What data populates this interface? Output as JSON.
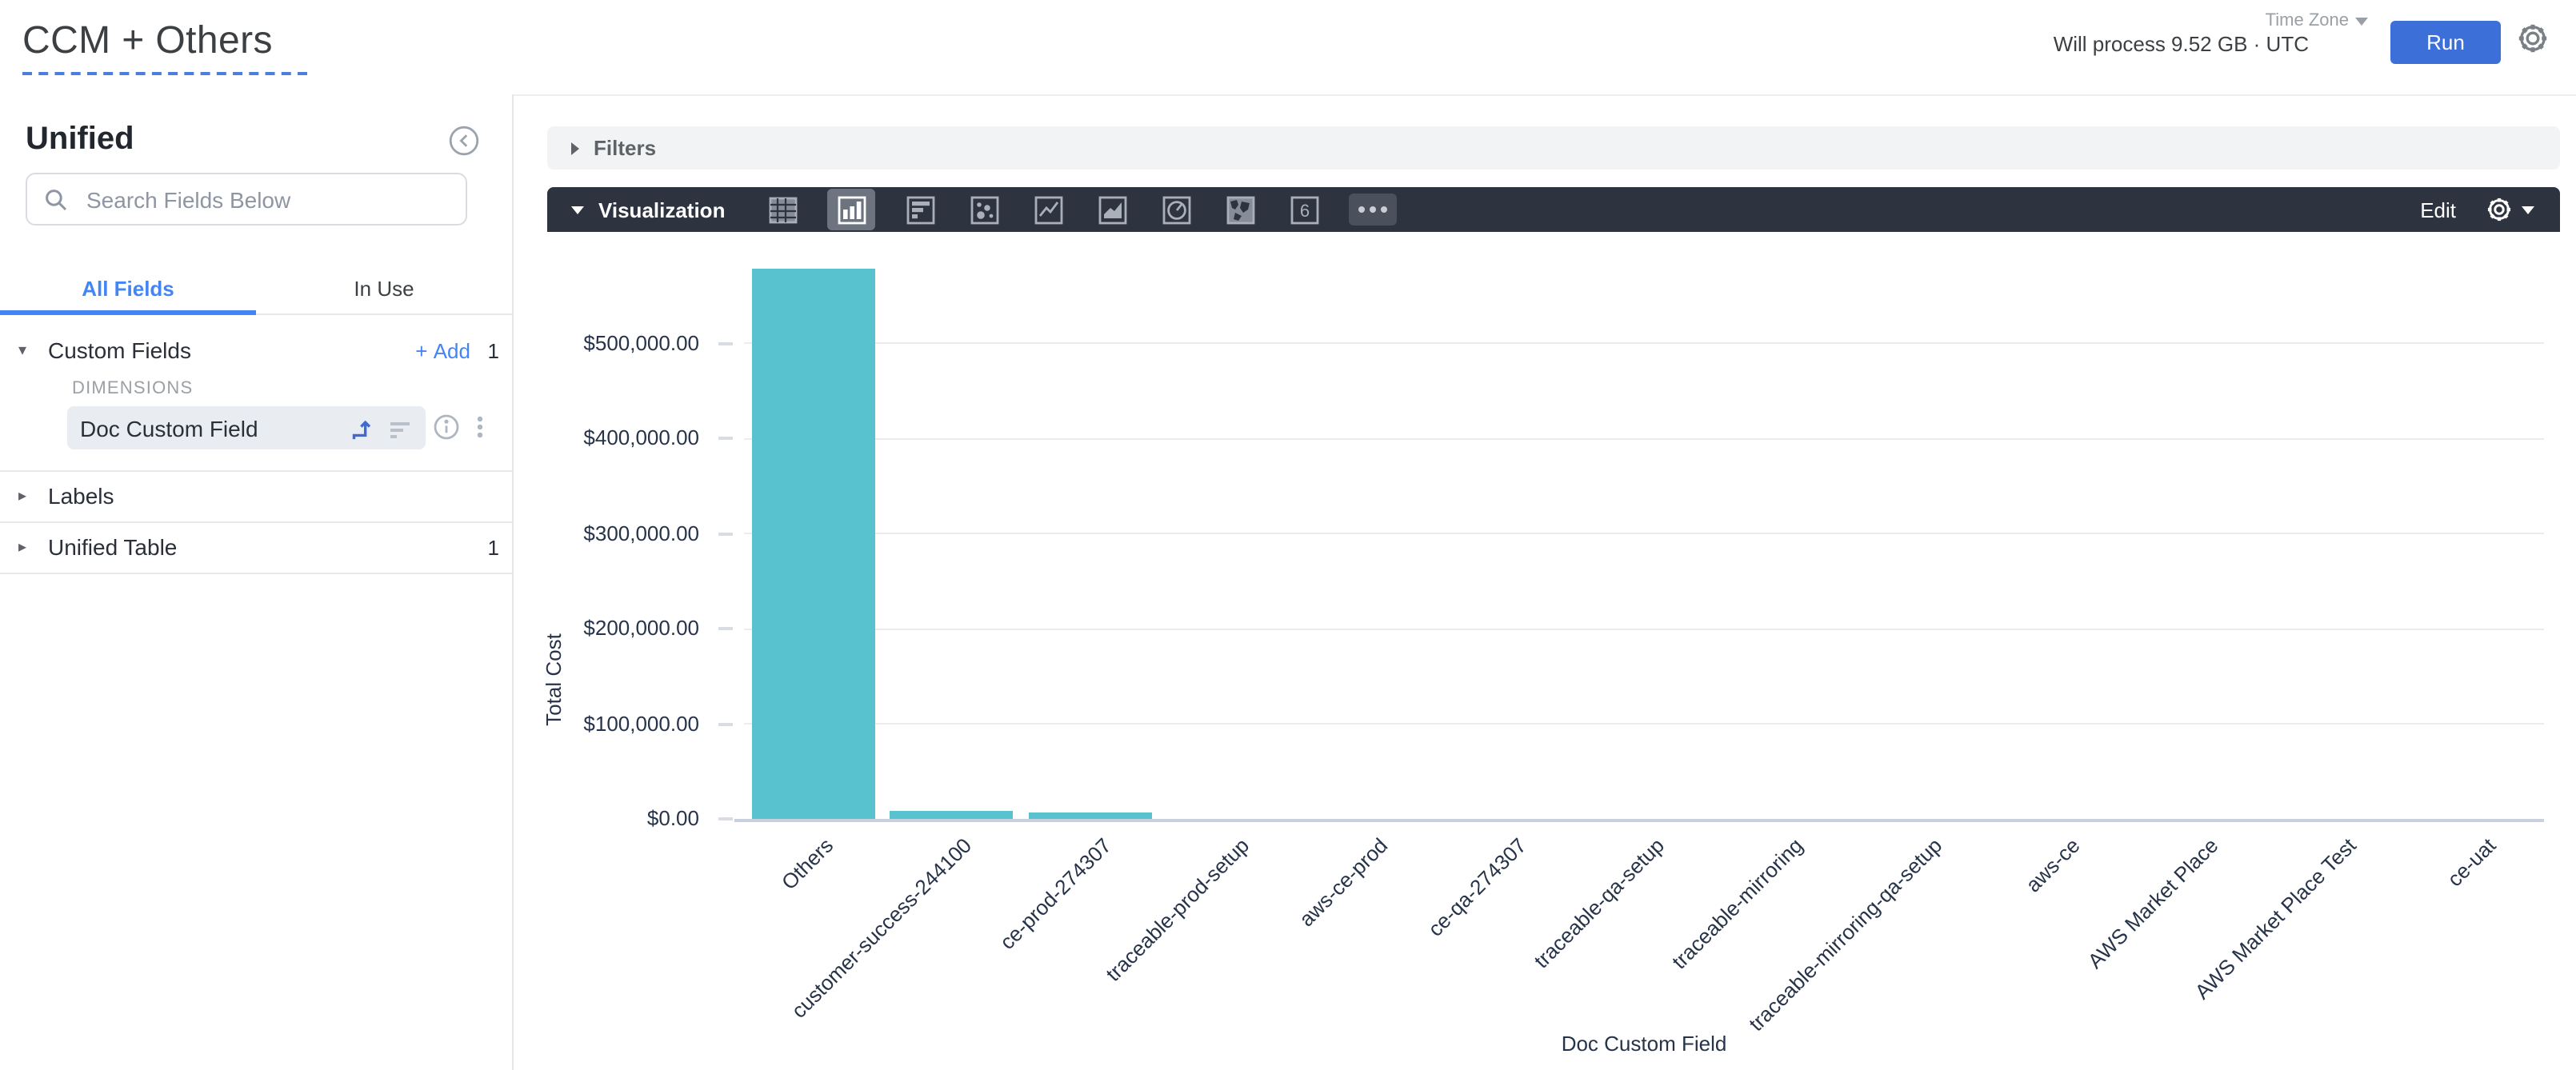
{
  "header": {
    "title": "CCM + Others",
    "time_zone_label": "Time Zone",
    "process_info": "Will process 9.52 GB · UTC",
    "run_label": "Run"
  },
  "sidebar": {
    "title": "Unified",
    "search_placeholder": "Search Fields Below",
    "tabs": [
      {
        "label": "All Fields",
        "active": true
      },
      {
        "label": "In Use",
        "active": false
      }
    ],
    "custom_fields": {
      "label": "Custom Fields",
      "add_label": "Add",
      "count": "1",
      "group_label": "DIMENSIONS",
      "field_name": "Doc Custom Field"
    },
    "labels_section": {
      "label": "Labels"
    },
    "unified_table_section": {
      "label": "Unified Table",
      "count": "1"
    }
  },
  "filters_bar": {
    "label": "Filters"
  },
  "viz_bar": {
    "label": "Visualization",
    "edit_label": "Edit",
    "selected_type": "column",
    "icon_names": [
      "table-icon",
      "column-chart-icon",
      "bar-chart-icon",
      "scatter-chart-icon",
      "line-chart-icon",
      "area-chart-icon",
      "pie-chart-icon",
      "map-chart-icon",
      "single-value-icon",
      "more-options"
    ]
  },
  "chart_data": {
    "type": "bar",
    "title": "",
    "xlabel": "Doc Custom Field",
    "ylabel": "Total Cost",
    "categories": [
      "Others",
      "customer-success-244100",
      "ce-prod-274307",
      "traceable-prod-setup",
      "aws-ce-prod",
      "ce-qa-274307",
      "traceable-qa-setup",
      "traceable-mirroring",
      "traceable-mirroring-qa-setup",
      "aws-ce",
      "AWS Market Place",
      "AWS Market Place Test",
      "ce-uat"
    ],
    "values": [
      578000,
      9000,
      6000,
      0,
      0,
      0,
      0,
      0,
      0,
      0,
      0,
      0,
      0
    ],
    "y_ticks": [
      "$0.00",
      "$100,000.00",
      "$200,000.00",
      "$300,000.00",
      "$400,000.00",
      "$500,000.00"
    ],
    "ylim": [
      0,
      590000
    ],
    "grid": true,
    "legend": "none",
    "bar_color": "#58c3cf"
  },
  "colors": {
    "accent_blue": "#4285f4",
    "run_button": "#3d6fd8",
    "bar_teal": "#58c3cf",
    "toolbar_bg": "#2d333f",
    "axis_text": "#273349"
  }
}
